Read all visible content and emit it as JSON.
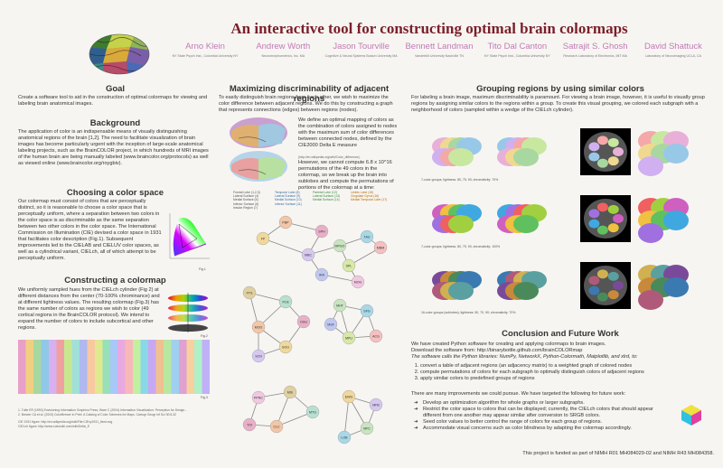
{
  "header": {
    "title": "An interactive tool for constructing optimal brain colormaps",
    "authors": [
      {
        "name": "Arno Klein",
        "affil": "NY State Psych Inst., Columbia University NY"
      },
      {
        "name": "Andrew Worth",
        "affil": "Neuromorphometrics, Inc. MA"
      },
      {
        "name": "Jason Tourville",
        "affil": "Cognitive & Neural Systems Boston University MA"
      },
      {
        "name": "Bennett Landman",
        "affil": "Vanderbilt University Nashville TN"
      },
      {
        "name": "Tito Dal Canton",
        "affil": "NY State Psych Inst., Columbia University NY"
      },
      {
        "name": "Satrajit S. Ghosh",
        "affil": "Research Laboratory of Electronics, MIT MA"
      },
      {
        "name": "David Shattuck",
        "affil": "Laboratory of Neuroimaging UCLA, CA"
      }
    ]
  },
  "goal": {
    "heading": "Goal",
    "text": "Create a software tool to aid in the construction of optimal colormaps for viewing and labeling brain anatomical images."
  },
  "background": {
    "heading": "Background",
    "text": "The application of color is an indispensable means of visually distinguishing anatomical regions of the brain [1,2]. The need to facilitate visualization of brain images has become particularly urgent with the inception of large-scale anatomical labeling projects, such as the BrainCOLOR project, in which hundreds of MRI images of the human brain are being manually labeled (www.braincolor.org/protocols) as well as viewed online (www.braincolor.org/roygbiv)."
  },
  "color_space": {
    "heading": "Choosing a color space",
    "text": "Our colormap must consist of colors that are perceptually distinct, so it is reasonable to choose a color space that is perceptually uniform, where a separation between two colors in the color space is as discriminable as the same separation between two other colors in the color space. The International Commission on Illumination (CIE) devised a color space in 1931 that facilitates color description (Fig.1). Subsequent improvements led to the CIELAB and CIELUV color spaces, as well as a cylindrical variant, CIELch, all of which attempt to be perceptually uniform.",
    "fig": "Fig.1"
  },
  "constructing": {
    "heading": "Constructing a colormap",
    "text": "We uniformly sampled hues from the CIELch cylinder (Fig 2) at different distances from the center (70-100% chrominance) and at different lightness values. The resulting colormap (Fig.3) has the same number of colors as regions we wish to color (49 cortical regions in the BrainCOLOR protocol). We intend to expand the number of colors to include subcortical and other regions.",
    "fig2": "Fig.2",
    "fig3": "Fig.3"
  },
  "references": [
    "1. Tufte ER (1990) Envisioning Information Graphics Press; Ware C (2004) Information Visualization: Perception for Design...",
    "2. Brewer CA et al. (2003) ColorBrewer in Print: A Catalog of Color Schemes for Maps. Cartogr Geogr Inf Sci 30:5-32",
    "CIE 1931 figure: http://en.wikipedia.org/wiki/File:CIExy1931_fixed.svg",
    "CIELch figure: http://www.colorwiki.com/wiki/Delta_E"
  ],
  "maximizing": {
    "heading": "Maximizing discriminability of adjacent regions",
    "intro": "To easily distinguish brain regions from each other, we wish to maximize the color difference between adjacent regions. We do this by constructing a graph that represents connections (edges) between regions (nodes).",
    "text": "We define an optimal mapping of colors as the combination of colors assigned to nodes with the maximum sum of color differences between connected nodes, defined by the CIE2000 Delta E measure",
    "url": "(http://en.wikipedia.org/wiki/Color_difference).",
    "text2": "However, we cannot compute 6.8 x 10^16 permutations of the 49 colors in the colormap, so we break up the brain into sublobes and compute the permutations of portions of the colormap at a time:",
    "legend": [
      {
        "title": "Frontal Lobe (1,2,3)",
        "items": [
          "Lateral Surface (4)",
          "Medial Surface (5)",
          "Inferior Surface (6)",
          "Insular Region (7)"
        ]
      },
      {
        "title": "Temporal Lobe (8)",
        "items": [
          "Lateral Surface (9)",
          "Medial Surface (10)",
          "Inferior Surface (11)"
        ]
      },
      {
        "title": "Parietal Lobe (12)",
        "items": [
          "Lateral Surface (13)",
          "Medial Surface (14)"
        ]
      },
      {
        "title": "Limbic Lobe (15)",
        "items": [
          "Cingulate Gyrus (16)",
          "Medial Temporal Lobe (17)"
        ]
      }
    ]
  },
  "grouping": {
    "heading": "Grouping regions by using similar colors",
    "text": "For labeling a brain image, maximum discriminability is paramount. For viewing a brain image, however, it is useful to visually group regions by assigning similar colors to the regions within a group. To create this visual grouping, we colored each subgraph with a neighborhood of colors (sampled within a wedge of the CIELch cylinder).",
    "captions": [
      "7-color groups; lightness: 80, 75, 90; chromaticity: 70%",
      "7-color groups; lightness: 80, 75, 90; chromaticity: 100%",
      "16-color groups (sublobes); lightness: 50, 70, 90; chromaticity: 70%"
    ]
  },
  "conclusion": {
    "heading": "Conclusion and Future Work",
    "intro1": "We have created Python software for creating and applying colormaps to brain images.",
    "intro2": "Download the software from: http://binarybottle.github.com/brainCOLORmap",
    "intro3": "The software calls the Python libraries: NumPy, NetworkX, Python-Colormath, Matplotlib, and xlrd, to:",
    "steps": [
      "convert a table of adjacent regions (an adjacency matrix) to a weighted graph of colored nodes",
      "compute permutations of colors for each subgraph to optimally distinguish colors of adjacent regions",
      "apply similar colors to predefined groups of regions"
    ],
    "future_intro": "There are many improvements we could pursue. We have targeted the following for future work:",
    "future": [
      "Develop an optimization algorithm for whole graphs or larger subgraphs.",
      "Restrict the color space to colors that can be displayed; currently, the CIELch colors that should appear different from one another may appear similar after conversion to SRGB colors.",
      "Seed color values to better control the range of colors for each group of regions.",
      "Accommodate visual concerns such as color blindness by adapting the colormap accordingly."
    ],
    "funding": "This project is funded as part of NIMH R01 MH084029-02 and NIMH R43 MH084358."
  },
  "graph_nodes": [
    "PBP",
    "SPH",
    "FP",
    "MBC",
    "MPGO",
    "TAU",
    "MBM",
    "SPL",
    "IRA",
    "MOG",
    "FTS",
    "PLN",
    "MOO",
    "OGU",
    "SOG",
    "SCN",
    "MHT",
    "SFG",
    "ACG",
    "MPU",
    "MSF",
    "PPNC",
    "MSI",
    "MTG",
    "CLC",
    "TOI",
    "EWG",
    "MFB",
    "MFC",
    "LOB"
  ],
  "colors": {
    "title": "#7a1f2a",
    "author": "#c07ab6"
  }
}
